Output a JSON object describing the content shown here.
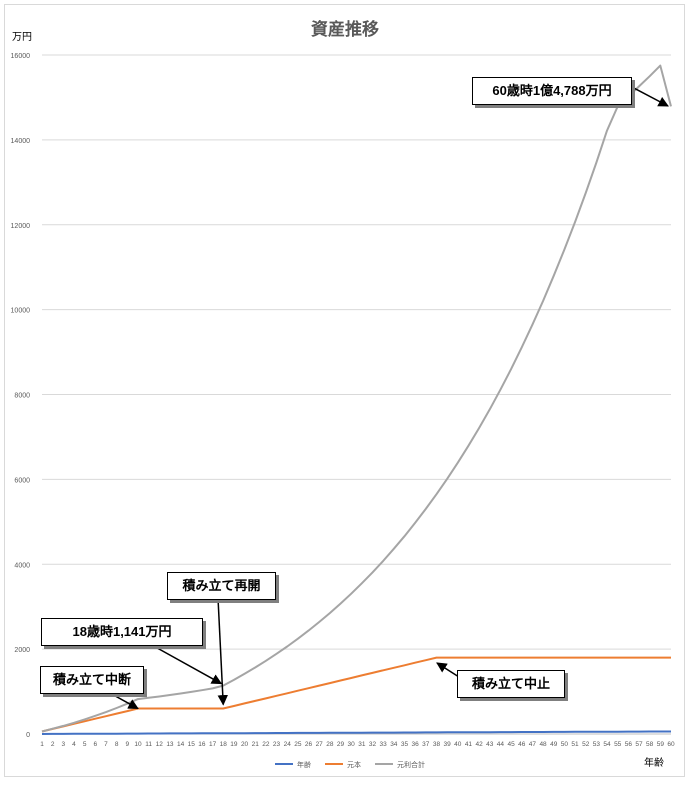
{
  "chart_data": {
    "type": "line",
    "title": "資産推移",
    "ylabel": "万円",
    "xlabel": "年齢",
    "ylim": [
      0,
      16000
    ],
    "yticks": [
      0,
      2000,
      4000,
      6000,
      8000,
      10000,
      12000,
      14000,
      16000
    ],
    "x": [
      1,
      2,
      3,
      4,
      5,
      6,
      7,
      8,
      9,
      10,
      11,
      12,
      13,
      14,
      15,
      16,
      17,
      18,
      19,
      20,
      21,
      22,
      23,
      24,
      25,
      26,
      27,
      28,
      29,
      30,
      31,
      32,
      33,
      34,
      35,
      36,
      37,
      38,
      39,
      40,
      41,
      42,
      43,
      44,
      45,
      46,
      47,
      48,
      49,
      50,
      51,
      52,
      53,
      54,
      55,
      56,
      57,
      58,
      59,
      60
    ],
    "grid": true,
    "legend_position": "bottom",
    "series": [
      {
        "name": "年齢",
        "color": "#4472c4",
        "values": [
          1,
          2,
          3,
          4,
          5,
          6,
          7,
          8,
          9,
          10,
          11,
          12,
          13,
          14,
          15,
          16,
          17,
          18,
          19,
          20,
          21,
          22,
          23,
          24,
          25,
          26,
          27,
          28,
          29,
          30,
          31,
          32,
          33,
          34,
          35,
          36,
          37,
          38,
          39,
          40,
          41,
          42,
          43,
          44,
          45,
          46,
          47,
          48,
          49,
          50,
          51,
          52,
          53,
          54,
          55,
          56,
          57,
          58,
          59,
          60
        ]
      },
      {
        "name": "元本",
        "color": "#ed7d31",
        "values": [
          60,
          120,
          180,
          240,
          300,
          360,
          420,
          480,
          540,
          600,
          600,
          600,
          600,
          600,
          600,
          600,
          600,
          600,
          660,
          720,
          780,
          840,
          900,
          960,
          1020,
          1080,
          1140,
          1200,
          1260,
          1320,
          1380,
          1440,
          1500,
          1560,
          1620,
          1680,
          1740,
          1800,
          1800,
          1800,
          1800,
          1800,
          1800,
          1800,
          1800,
          1800,
          1800,
          1800,
          1800,
          1800,
          1800,
          1800,
          1800,
          1800,
          1800,
          1800,
          1800,
          1800,
          1800,
          1800
        ]
      },
      {
        "name": "元利合計",
        "color": "#a5a5a5",
        "values": [
          60,
          124,
          192,
          265,
          344,
          428,
          517,
          612,
          714,
          822,
          852,
          884,
          918,
          954,
          992,
          1032,
          1075,
          1141,
          1275,
          1418,
          1567,
          1725,
          1890,
          2063,
          2245,
          2437,
          2638,
          2850,
          3072,
          3305,
          3551,
          3808,
          4079,
          4363,
          4662,
          4975,
          5304,
          5650,
          6012,
          6392,
          6792,
          7211,
          7652,
          8114,
          8599,
          9109,
          9644,
          10206,
          10796,
          11416,
          12066,
          12749,
          13466,
          14219,
          14788,
          15020,
          15260,
          15500,
          15750,
          14788
        ]
      }
    ],
    "annotations": [
      {
        "text": "積み立て中断",
        "x": 10
      },
      {
        "text": "18歳時1,141万円",
        "x": 18
      },
      {
        "text": "積み立て再開",
        "x": 18
      },
      {
        "text": "積み立て中止",
        "x": 38
      },
      {
        "text": "60歳時1億4,788万円",
        "x": 60
      }
    ]
  }
}
